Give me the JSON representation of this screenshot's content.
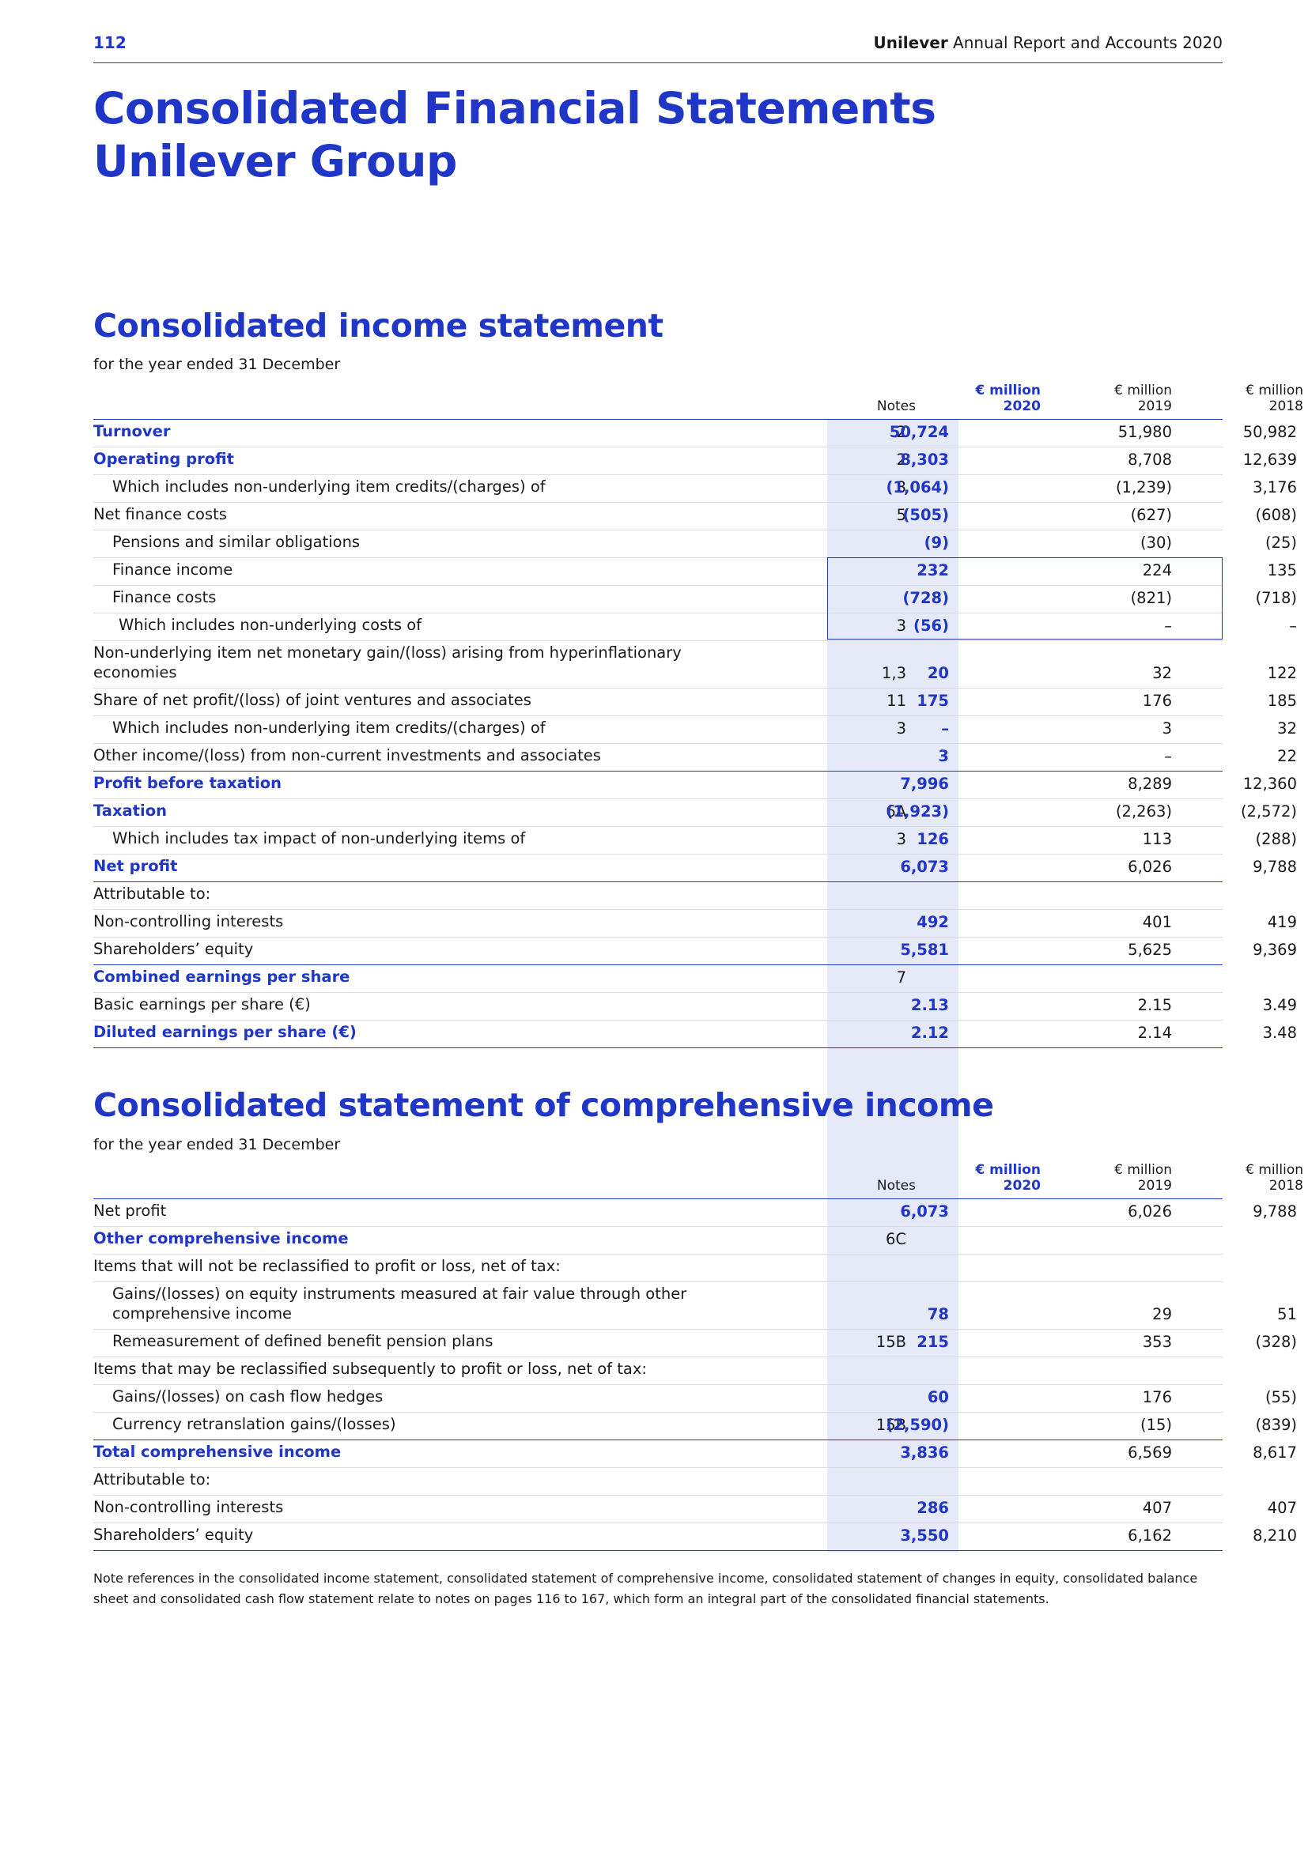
{
  "header": {
    "page_number": "112",
    "brand": "Unilever",
    "report_title": "Annual Report and Accounts 2020"
  },
  "main_title": {
    "line1": "Consolidated Financial Statements",
    "line2": "Unilever Group"
  },
  "colors": {
    "accent": "#1f36c7",
    "shade": "#e6e9f7"
  },
  "columns": {
    "notes": "Notes",
    "unit": "€ million",
    "y2020": "2020",
    "y2019": "2019",
    "y2018": "2018"
  },
  "income_statement": {
    "title": "Consolidated income statement",
    "subtitle": "for the year ended 31 December",
    "rows": [
      {
        "label": "Turnover",
        "notes": "2",
        "v2020": "50,724",
        "v2019": "51,980",
        "v2018": "50,982"
      },
      {
        "label": "Operating profit",
        "notes": "2",
        "v2020": "8,303",
        "v2019": "8,708",
        "v2018": "12,639"
      },
      {
        "label": "Which includes non-underlying item credits/(charges) of",
        "notes": "3",
        "v2020": "(1,064)",
        "v2019": "(1,239)",
        "v2018": "3,176"
      },
      {
        "label": "Net finance costs",
        "notes": "5",
        "v2020": "(505)",
        "v2019": "(627)",
        "v2018": "(608)"
      },
      {
        "label": "Pensions and similar obligations",
        "notes": "",
        "v2020": "(9)",
        "v2019": "(30)",
        "v2018": "(25)"
      },
      {
        "label": "Finance income",
        "notes": "",
        "v2020": "232",
        "v2019": "224",
        "v2018": "135"
      },
      {
        "label": "Finance costs",
        "notes": "",
        "v2020": "(728)",
        "v2019": "(821)",
        "v2018": "(718)"
      },
      {
        "label": "Which includes non-underlying costs of",
        "notes": "3",
        "v2020": "(56)",
        "v2019": "–",
        "v2018": "–"
      },
      {
        "label": "Non-underlying item net monetary gain/(loss) arising from hyperinflationary economies",
        "notes": "1,3",
        "v2020": "20",
        "v2019": "32",
        "v2018": "122"
      },
      {
        "label": "Share of net profit/(loss) of joint ventures and associates",
        "notes": "11",
        "v2020": "175",
        "v2019": "176",
        "v2018": "185"
      },
      {
        "label": "Which includes non-underlying item credits/(charges) of",
        "notes": "3",
        "v2020": "–",
        "v2019": "3",
        "v2018": "32"
      },
      {
        "label": "Other income/(loss) from non-current investments and associates",
        "notes": "",
        "v2020": "3",
        "v2019": "–",
        "v2018": "22"
      },
      {
        "label": "Profit before taxation",
        "notes": "",
        "v2020": "7,996",
        "v2019": "8,289",
        "v2018": "12,360"
      },
      {
        "label": "Taxation",
        "notes": "6A",
        "v2020": "(1,923)",
        "v2019": "(2,263)",
        "v2018": "(2,572)"
      },
      {
        "label": "Which includes tax impact of non-underlying items of",
        "notes": "3",
        "v2020": "126",
        "v2019": "113",
        "v2018": "(288)"
      },
      {
        "label": "Net profit",
        "notes": "",
        "v2020": "6,073",
        "v2019": "6,026",
        "v2018": "9,788"
      },
      {
        "label": "Attributable to:",
        "notes": "",
        "v2020": "",
        "v2019": "",
        "v2018": ""
      },
      {
        "label": "Non-controlling interests",
        "notes": "",
        "v2020": "492",
        "v2019": "401",
        "v2018": "419"
      },
      {
        "label": "Shareholders’ equity",
        "notes": "",
        "v2020": "5,581",
        "v2019": "5,625",
        "v2018": "9,369"
      },
      {
        "label": "Combined earnings per share",
        "notes": "7",
        "v2020": "",
        "v2019": "",
        "v2018": ""
      },
      {
        "label": "Basic earnings per share (€)",
        "notes": "",
        "v2020": "2.13",
        "v2019": "2.15",
        "v2018": "3.49"
      },
      {
        "label": "Diluted earnings per share (€)",
        "notes": "",
        "v2020": "2.12",
        "v2019": "2.14",
        "v2018": "3.48"
      }
    ]
  },
  "comprehensive_income": {
    "title": "Consolidated statement of comprehensive income",
    "subtitle": "for the year ended 31 December",
    "rows": [
      {
        "label": "Net profit",
        "notes": "",
        "v2020": "6,073",
        "v2019": "6,026",
        "v2018": "9,788"
      },
      {
        "label": "Other comprehensive income",
        "notes": "6C",
        "v2020": "",
        "v2019": "",
        "v2018": ""
      },
      {
        "label": "Items that will not be reclassified to profit or loss, net of tax:",
        "notes": "",
        "v2020": "",
        "v2019": "",
        "v2018": ""
      },
      {
        "label": "Gains/(losses) on equity instruments measured at fair value through other comprehensive income",
        "notes": "",
        "v2020": "78",
        "v2019": "29",
        "v2018": "51"
      },
      {
        "label": "Remeasurement of defined benefit pension plans",
        "notes": "15B",
        "v2020": "215",
        "v2019": "353",
        "v2018": "(328)"
      },
      {
        "label": "Items that may be reclassified subsequently to profit or loss, net of tax:",
        "notes": "",
        "v2020": "",
        "v2019": "",
        "v2018": ""
      },
      {
        "label": "Gains/(losses) on cash flow hedges",
        "notes": "",
        "v2020": "60",
        "v2019": "176",
        "v2018": "(55)"
      },
      {
        "label": "Currency retranslation gains/(losses)",
        "notes": "15B",
        "v2020": "(2,590)",
        "v2019": "(15)",
        "v2018": "(839)"
      },
      {
        "label": "Total comprehensive income",
        "notes": "",
        "v2020": "3,836",
        "v2019": "6,569",
        "v2018": "8,617"
      },
      {
        "label": "Attributable to:",
        "notes": "",
        "v2020": "",
        "v2019": "",
        "v2018": ""
      },
      {
        "label": "Non-controlling interests",
        "notes": "",
        "v2020": "286",
        "v2019": "407",
        "v2018": "407"
      },
      {
        "label": "Shareholders’ equity",
        "notes": "",
        "v2020": "3,550",
        "v2019": "6,162",
        "v2018": "8,210"
      }
    ]
  },
  "footnote": "Note references in the consolidated income statement, consolidated statement of comprehensive income, consolidated statement of changes in equity, consolidated balance sheet and consolidated cash flow statement relate to notes on pages 116 to 167, which form an integral part of the consolidated financial statements."
}
